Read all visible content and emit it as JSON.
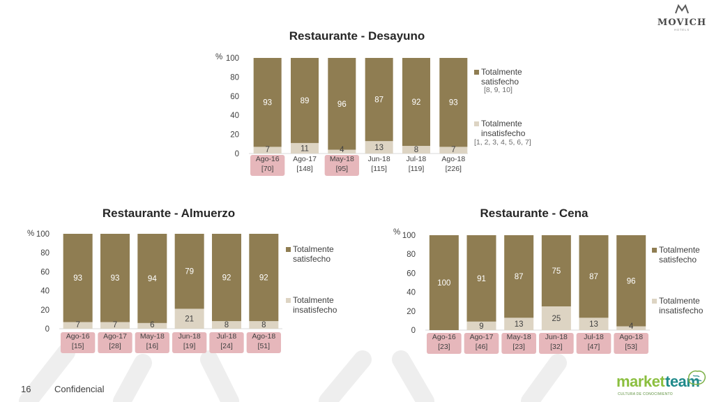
{
  "brand": {
    "hotel_logo": "MOVICH",
    "hotel_logo_sub": "HOTELS",
    "agency_logo_a": "market",
    "agency_logo_b": "team",
    "agency_tagline": "CULTURA DE CONOCIMIENTO"
  },
  "footer": {
    "page_number": "16",
    "confidential": "Confidencial"
  },
  "colors": {
    "satisfied": "#8f7d52",
    "unsatisfied": "#ddd4c3",
    "highlight": "#e6b7bb"
  },
  "chart_data": [
    {
      "type": "bar",
      "stacked": true,
      "title": "Restaurante - Desayuno",
      "ylabel": "%",
      "ylim": [
        0,
        100
      ],
      "yticks": [
        "0",
        "20",
        "40",
        "60",
        "80",
        "100"
      ],
      "categories": [
        "Ago-16",
        "Ago-17",
        "May-18",
        "Jun-18",
        "Jul-18",
        "Ago-18"
      ],
      "bases": [
        "[70]",
        "[148]",
        "[95]",
        "[115]",
        "[119]",
        "[226]"
      ],
      "highlighted": [
        0,
        2
      ],
      "series": [
        {
          "name": "Totalmente insatisfecho",
          "note": "[1, 2, 3, 4, 5, 6, 7]",
          "values": [
            7,
            11,
            4,
            13,
            8,
            7
          ]
        },
        {
          "name": "Totalmente satisfecho",
          "note": "[8, 9, 10]",
          "values": [
            93,
            89,
            96,
            87,
            92,
            93
          ]
        }
      ],
      "legend_position": "right"
    },
    {
      "type": "bar",
      "stacked": true,
      "title": "Restaurante - Almuerzo",
      "ylabel": "%",
      "ylim": [
        0,
        100
      ],
      "yticks": [
        "0",
        "20",
        "40",
        "60",
        "80",
        "100"
      ],
      "categories": [
        "Ago-16",
        "Ago-17",
        "May-18",
        "Jun-18",
        "Jul-18",
        "Ago-18"
      ],
      "bases": [
        "[15]",
        "[28]",
        "[16]",
        "[19]",
        "[24]",
        "[51]"
      ],
      "highlighted": [
        0,
        1,
        2,
        3,
        4,
        5
      ],
      "series": [
        {
          "name": "Totalmente insatisfecho",
          "note": "",
          "values": [
            7,
            7,
            6,
            21,
            8,
            8
          ]
        },
        {
          "name": "Totalmente satisfecho",
          "note": "",
          "values": [
            93,
            93,
            94,
            79,
            92,
            92
          ]
        }
      ],
      "legend_position": "right"
    },
    {
      "type": "bar",
      "stacked": true,
      "title": "Restaurante - Cena",
      "ylabel": "%",
      "ylim": [
        0,
        100
      ],
      "yticks": [
        "0",
        "20",
        "40",
        "60",
        "80",
        "100"
      ],
      "categories": [
        "Ago-16",
        "Ago-17",
        "May-18",
        "Jun-18",
        "Jul-18",
        "Ago-18"
      ],
      "bases": [
        "[23]",
        "[46]",
        "[23]",
        "[32]",
        "[47]",
        "[53]"
      ],
      "highlighted": [
        0,
        1,
        2,
        3,
        4,
        5
      ],
      "series": [
        {
          "name": "Totalmente insatisfecho",
          "note": "",
          "values": [
            0,
            9,
            13,
            25,
            13,
            4
          ]
        },
        {
          "name": "Totalmente satisfecho",
          "note": "",
          "values": [
            100,
            91,
            87,
            75,
            87,
            96
          ]
        }
      ],
      "legend_position": "right"
    }
  ]
}
